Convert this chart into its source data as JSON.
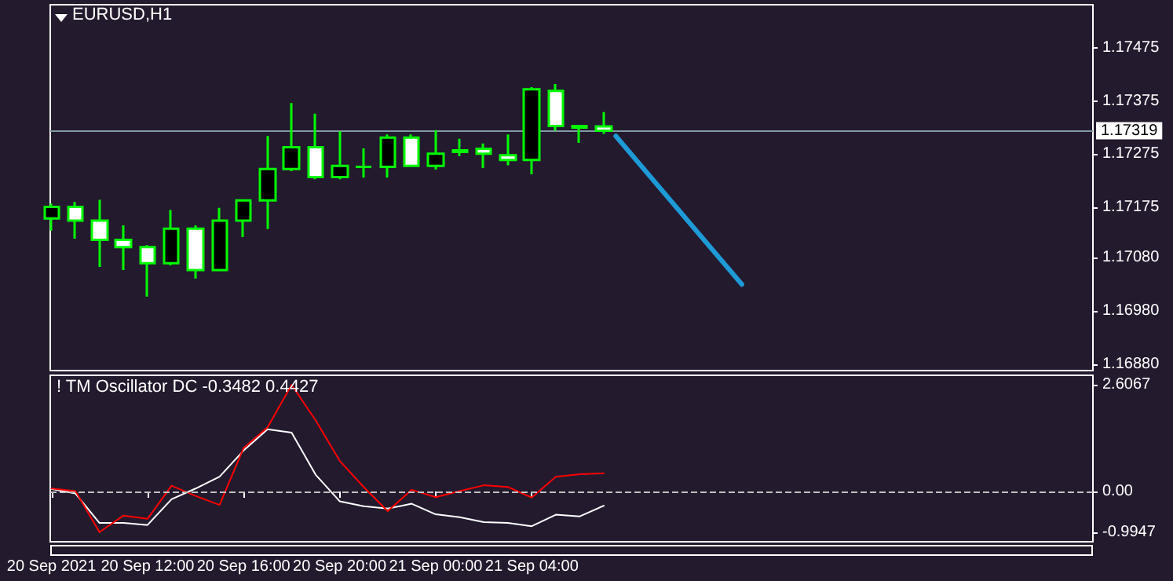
{
  "chart_data": [
    {
      "type": "candlestick",
      "title": "EURUSD,H1",
      "color": "#00ff00",
      "x": [
        "2021-09-20T08:00",
        "2021-09-20T09:00",
        "2021-09-20T10:00",
        "2021-09-20T11:00",
        "2021-09-20T12:00",
        "2021-09-20T13:00",
        "2021-09-20T14:00",
        "2021-09-20T15:00",
        "2021-09-20T16:00",
        "2021-09-20T17:00",
        "2021-09-20T18:00",
        "2021-09-20T19:00",
        "2021-09-20T20:00",
        "2021-09-20T21:00",
        "2021-09-20T22:00",
        "2021-09-20T23:00",
        "2021-09-21T00:00",
        "2021-09-21T01:00",
        "2021-09-21T02:00",
        "2021-09-21T03:00",
        "2021-09-21T04:00",
        "2021-09-21T05:00",
        "2021-09-21T06:00",
        "2021-09-21T07:00"
      ],
      "ohlc": [
        [
          1.17154,
          1.17182,
          1.17131,
          1.17176
        ],
        [
          1.17176,
          1.17185,
          1.17116,
          1.1715
        ],
        [
          1.1715,
          1.17189,
          1.17063,
          1.17114
        ],
        [
          1.17114,
          1.17141,
          1.17057,
          1.171
        ],
        [
          1.171,
          1.17104,
          1.17007,
          1.1707
        ],
        [
          1.1707,
          1.1717,
          1.17066,
          1.17135
        ],
        [
          1.17135,
          1.17141,
          1.17041,
          1.17057
        ],
        [
          1.17057,
          1.17174,
          1.17057,
          1.1715
        ],
        [
          1.1715,
          1.17188,
          1.17119,
          1.17188
        ],
        [
          1.17188,
          1.17309,
          1.17134,
          1.17247
        ],
        [
          1.17247,
          1.17371,
          1.17243,
          1.17288
        ],
        [
          1.17288,
          1.17351,
          1.17228,
          1.17232
        ],
        [
          1.17232,
          1.17318,
          1.17228,
          1.17253
        ],
        [
          1.17251,
          1.17286,
          1.17231,
          1.17251
        ],
        [
          1.17251,
          1.17312,
          1.17231,
          1.17306
        ],
        [
          1.17306,
          1.17312,
          1.17253,
          1.17253
        ],
        [
          1.17253,
          1.1732,
          1.17246,
          1.17276
        ],
        [
          1.17282,
          1.17304,
          1.17271,
          1.17279
        ],
        [
          1.17285,
          1.17295,
          1.17249,
          1.17276
        ],
        [
          1.17273,
          1.17312,
          1.17254,
          1.17264
        ],
        [
          1.17264,
          1.17401,
          1.17237,
          1.17397
        ],
        [
          1.17394,
          1.17407,
          1.17319,
          1.17328
        ],
        [
          1.17328,
          1.1733,
          1.17296,
          1.17325
        ],
        [
          1.17327,
          1.17354,
          1.17313,
          1.17319
        ]
      ],
      "xlim": [
        "2021-09-20T07:57",
        "2021-09-22T03:22"
      ],
      "ylim": [
        1.16868,
        1.17556
      ],
      "yticks": [
        1.17475,
        1.17375,
        1.17275,
        1.17175,
        {
          "value": 1.1708,
          "label": "1.17080"
        },
        {
          "value": 1.1698,
          "label": "1.16980"
        },
        {
          "value": 1.1688,
          "label": "1.16880"
        }
      ],
      "tick_labels": "y",
      "ref_lines": [
        {
          "axis": "y",
          "value": 1.17319,
          "label": "1.17319",
          "color": "#7f9aa4"
        }
      ],
      "series": [
        {
          "type": "line",
          "color": "#1e9bd7",
          "x": [
            "2021-09-21T07:30",
            "2021-09-21T12:45"
          ],
          "values": [
            1.17309,
            1.1703
          ]
        }
      ]
    },
    {
      "type": "line",
      "title": "! TM Oscillator DC -0.3482 0.4427",
      "x": [
        "2021-09-20T08:00",
        "2021-09-20T09:00",
        "2021-09-20T10:00",
        "2021-09-20T11:00",
        "2021-09-20T12:00",
        "2021-09-20T13:00",
        "2021-09-20T14:00",
        "2021-09-20T15:00",
        "2021-09-20T16:00",
        "2021-09-20T17:00",
        "2021-09-20T18:00",
        "2021-09-20T19:00",
        "2021-09-20T20:00",
        "2021-09-20T21:00",
        "2021-09-20T22:00",
        "2021-09-20T23:00",
        "2021-09-21T00:00",
        "2021-09-21T01:00",
        "2021-09-21T02:00",
        "2021-09-21T03:00",
        "2021-09-21T04:00",
        "2021-09-21T05:00",
        "2021-09-21T06:00",
        "2021-09-21T07:00"
      ],
      "xlim": [
        "2021-09-20T07:57",
        "2021-09-22T03:22"
      ],
      "ylim": [
        -1.23,
        2.84
      ],
      "xticks": [
        {
          "value": "2021-09-20T08:00",
          "label": "20 Sep 2021"
        },
        {
          "value": "2021-09-20T12:00",
          "label": "20 Sep 12:00"
        },
        {
          "value": "2021-09-20T16:00",
          "label": "20 Sep 16:00"
        },
        {
          "value": "2021-09-20T20:00",
          "label": "20 Sep 20:00"
        },
        {
          "value": "2021-09-21T00:00",
          "label": "21 Sep 00:00"
        },
        {
          "value": "2021-09-21T04:00",
          "label": "21 Sep 04:00"
        }
      ],
      "yticks": [
        2.6067,
        {
          "value": 0,
          "label": "0.00"
        },
        -0.9947
      ],
      "ref_lines": [
        {
          "axis": "y",
          "value": 0,
          "color": "#c0c0c0",
          "line_style": "dashed"
        }
      ],
      "series": [
        {
          "color": "#ffffff",
          "values": [
            0.06,
            -0.05,
            -0.77,
            -0.77,
            -0.82,
            -0.19,
            0.07,
            0.36,
            1.0,
            1.52,
            1.44,
            0.41,
            -0.24,
            -0.36,
            -0.42,
            -0.3,
            -0.56,
            -0.63,
            -0.75,
            -0.77,
            -0.85,
            -0.57,
            -0.61,
            -0.3482
          ]
        },
        {
          "color": "#ff0000",
          "values": [
            0.07,
            0.01,
            -0.9947,
            -0.59,
            -0.67,
            0.14,
            -0.11,
            -0.33,
            1.06,
            1.57,
            2.6067,
            1.74,
            0.75,
            0.11,
            -0.48,
            0.04,
            -0.14,
            0.01,
            0.15,
            0.11,
            -0.15,
            0.36,
            0.42,
            0.4427
          ]
        }
      ]
    }
  ]
}
